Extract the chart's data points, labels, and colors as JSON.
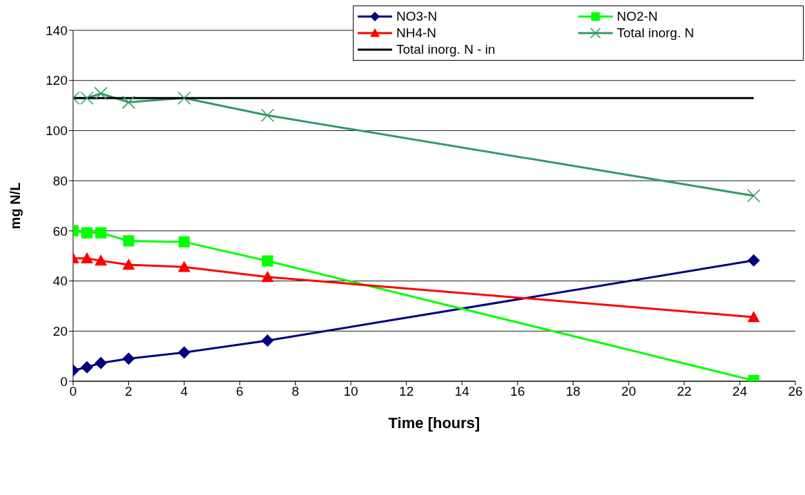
{
  "chart_data": {
    "type": "line",
    "xlabel": "Time [hours]",
    "ylabel": "mg N/L",
    "x": [
      0,
      0.5,
      1,
      2,
      4,
      7,
      24.5
    ],
    "xlim": [
      0,
      26
    ],
    "xticks": [
      0,
      2,
      4,
      6,
      8,
      10,
      12,
      14,
      16,
      18,
      20,
      22,
      24,
      26
    ],
    "ylim": [
      0,
      140
    ],
    "yticks": [
      0,
      20,
      40,
      60,
      80,
      100,
      120,
      140
    ],
    "grid": "y",
    "legend": "top right",
    "series": [
      {
        "name": "NO3-N",
        "color": "#000080",
        "marker": "diamond",
        "values": [
          4.3,
          5.6,
          7.3,
          9,
          11.5,
          16.2,
          48.2
        ]
      },
      {
        "name": "NO2-N",
        "color": "#00ff00",
        "marker": "square",
        "values": [
          60,
          59.2,
          59.2,
          56,
          55.6,
          48,
          0.3
        ]
      },
      {
        "name": "NH4-N",
        "color": "#ff0000",
        "marker": "triangle",
        "values": [
          49,
          49,
          48.1,
          46.5,
          45.6,
          41.6,
          25.6
        ]
      },
      {
        "name": "Total inorg. N",
        "color": "#339966",
        "marker": "cross",
        "values": [
          113,
          113,
          114.8,
          111.3,
          113,
          106.1,
          74
        ]
      },
      {
        "name": "Total inorg. N - in",
        "color": "#000000",
        "marker": "none",
        "values": [
          113,
          113,
          113,
          113,
          113,
          113,
          113
        ]
      }
    ]
  }
}
